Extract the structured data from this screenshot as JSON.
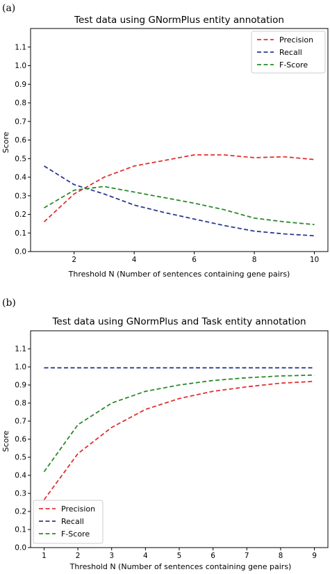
{
  "chart_data": [
    {
      "type": "line",
      "panel_label": "(a)",
      "title": "Test data using GNormPlus entity annotation",
      "xlabel": "Threshold N (Number of sentences containing gene pairs)",
      "ylabel": "Score",
      "xlim": [
        0.55,
        10.45
      ],
      "ylim": [
        0.0,
        1.2
      ],
      "xticks": [
        2,
        4,
        6,
        8,
        10
      ],
      "xtick_labels": [
        "2",
        "4",
        "6",
        "8",
        "10"
      ],
      "yticks": [
        0.0,
        0.1,
        0.2,
        0.3,
        0.4,
        0.5,
        0.6,
        0.7,
        0.8,
        0.9,
        1.0,
        1.1
      ],
      "ytick_labels": [
        "0.0",
        "0.1",
        "0.2",
        "0.3",
        "0.4",
        "0.5",
        "0.6",
        "0.7",
        "0.8",
        "0.9",
        "1.0",
        "1.1"
      ],
      "x": [
        1,
        2,
        3,
        4,
        5,
        6,
        7,
        8,
        9,
        10
      ],
      "grid": false,
      "legend_position": "top-right",
      "series": [
        {
          "name": "Precision",
          "color": "#e03030",
          "values": [
            0.16,
            0.31,
            0.4,
            0.46,
            0.49,
            0.52,
            0.52,
            0.505,
            0.51,
            0.495
          ]
        },
        {
          "name": "Recall",
          "color": "#2b3a8f",
          "values": [
            0.46,
            0.36,
            0.31,
            0.25,
            0.21,
            0.175,
            0.14,
            0.11,
            0.095,
            0.085
          ]
        },
        {
          "name": "F-Score",
          "color": "#2a8a2a",
          "values": [
            0.235,
            0.33,
            0.35,
            0.32,
            0.29,
            0.26,
            0.225,
            0.18,
            0.16,
            0.145
          ]
        }
      ]
    },
    {
      "type": "line",
      "panel_label": "(b)",
      "title": "Test data using GNormPlus and Task entity annotation",
      "xlabel": "Threshold N (Number of sentences containing gene pairs)",
      "ylabel": "Score",
      "xlim": [
        0.6,
        9.4
      ],
      "ylim": [
        0.0,
        1.2
      ],
      "xticks": [
        1,
        2,
        3,
        4,
        5,
        6,
        7,
        8,
        9
      ],
      "xtick_labels": [
        "1",
        "2",
        "3",
        "4",
        "5",
        "6",
        "7",
        "8",
        "9"
      ],
      "yticks": [
        0.0,
        0.1,
        0.2,
        0.3,
        0.4,
        0.5,
        0.6,
        0.7,
        0.8,
        0.9,
        1.0,
        1.1
      ],
      "ytick_labels": [
        "0.0",
        "0.1",
        "0.2",
        "0.3",
        "0.4",
        "0.5",
        "0.6",
        "0.7",
        "0.8",
        "0.9",
        "1.0",
        "1.1"
      ],
      "x": [
        1,
        2,
        3,
        4,
        5,
        6,
        7,
        8,
        9
      ],
      "grid": false,
      "legend_position": "bottom-left",
      "series": [
        {
          "name": "Precision",
          "color": "#e03030",
          "values": [
            0.265,
            0.52,
            0.665,
            0.765,
            0.825,
            0.865,
            0.89,
            0.91,
            0.92
          ]
        },
        {
          "name": "Recall",
          "color": "#2b3a8f",
          "values": [
            0.995,
            0.995,
            0.995,
            0.995,
            0.995,
            0.995,
            0.995,
            0.995,
            0.995
          ]
        },
        {
          "name": "F-Score",
          "color": "#2a8a2a",
          "values": [
            0.42,
            0.68,
            0.8,
            0.865,
            0.9,
            0.925,
            0.94,
            0.95,
            0.955
          ]
        }
      ]
    }
  ]
}
